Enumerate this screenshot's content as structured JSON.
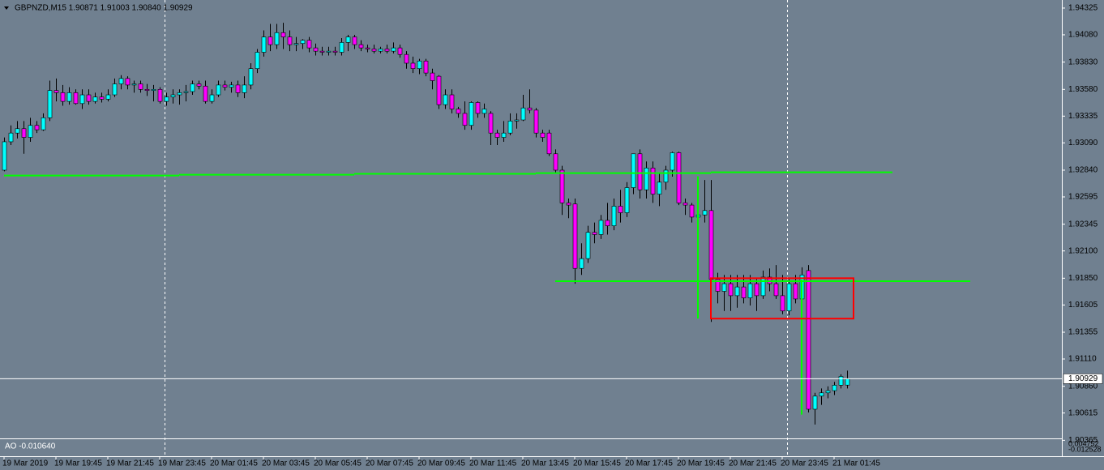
{
  "chart_data": {
    "type": "candlestick",
    "title": "GBPNZD,M15  1.90871 1.91003 1.90840 1.90929",
    "categories": [
      "19 Mar 2019",
      null,
      null,
      null,
      null,
      null,
      null,
      null,
      "19 Mar 19:45",
      null,
      null,
      null,
      null,
      null,
      null,
      null,
      "19 Mar 21:45",
      null,
      null,
      null,
      null,
      null,
      null,
      null,
      "19 Mar 23:45",
      null,
      null,
      null,
      null,
      null,
      null,
      null,
      "20 Mar 01:45",
      null,
      null,
      null,
      null,
      null,
      null,
      null,
      "20 Mar 03:45",
      null,
      null,
      null,
      null,
      null,
      null,
      null,
      "20 Mar 05:45",
      null,
      null,
      null,
      null,
      null,
      null,
      null,
      "20 Mar 07:45",
      null,
      null,
      null,
      null,
      null,
      null,
      null,
      "20 Mar 09:45",
      null,
      null,
      null,
      null,
      null,
      null,
      null,
      "20 Mar 11:45",
      null,
      null,
      null,
      null,
      null,
      null,
      null,
      "20 Mar 13:45",
      null,
      null,
      null,
      null,
      null,
      null,
      null,
      "20 Mar 15:45",
      null,
      null,
      null,
      null,
      null,
      null,
      null,
      "20 Mar 17:45",
      null,
      null,
      null,
      null,
      null,
      null,
      null,
      "20 Mar 19:45",
      null,
      null,
      null,
      null,
      null,
      null,
      null,
      "20 Mar 21:45",
      null,
      null,
      null,
      null,
      null,
      null,
      null,
      "20 Mar 23:45",
      null,
      null,
      null,
      null,
      null,
      null,
      null,
      "21 Mar 01:45",
      null,
      null
    ],
    "open": [
      1.9284,
      1.931,
      1.9318,
      1.9322,
      1.9314,
      1.9325,
      1.9321,
      1.9332,
      1.9357,
      1.9355,
      1.9347,
      1.9355,
      1.9345,
      1.9353,
      1.9347,
      1.9351,
      1.9349,
      1.9353,
      1.9363,
      1.9368,
      1.9362,
      1.9363,
      1.9358,
      1.9357,
      1.9358,
      1.9347,
      1.9351,
      1.9353,
      1.9355,
      1.9356,
      1.9363,
      1.9361,
      1.9347,
      1.9353,
      1.9362,
      1.936,
      1.9362,
      1.9355,
      1.9362,
      1.9377,
      1.9392,
      1.9406,
      1.9399,
      1.941,
      1.9406,
      1.9399,
      1.94,
      1.9403,
      1.9396,
      1.9393,
      1.9392,
      1.9393,
      1.9392,
      1.9401,
      1.9406,
      1.9399,
      1.9396,
      1.9395,
      1.9393,
      1.9395,
      1.9393,
      1.9396,
      1.939,
      1.9382,
      1.9377,
      1.9384,
      1.9373,
      1.937,
      1.9344,
      1.9353,
      1.934,
      1.9336,
      1.9325,
      1.9346,
      1.9336,
      1.9336,
      1.9318,
      1.9314,
      1.9318,
      1.9329,
      1.933,
      1.9341,
      1.9339,
      1.9318,
      1.9318,
      1.9299,
      1.9284,
      1.9254,
      1.9253,
      1.9194,
      1.9203,
      1.9227,
      1.9225,
      1.9238,
      1.9233,
      1.9251,
      1.9245,
      1.9268,
      1.9299,
      1.9266,
      1.9286,
      1.9262,
      1.9273,
      1.9284,
      1.93,
      1.9254,
      1.9252,
      1.9241,
      1.9243,
      1.9247,
      1.9184,
      1.9173,
      1.918,
      1.9169,
      1.9177,
      1.9167,
      1.918,
      1.9169,
      1.9186,
      1.918,
      1.9169,
      1.9155,
      1.918,
      1.9166,
      1.9192,
      1.9065,
      1.9077,
      1.908,
      1.9082,
      1.9087,
      1.90871
    ],
    "high": [
      1.9314,
      1.9325,
      1.9329,
      1.9329,
      1.9332,
      1.9329,
      1.9336,
      1.9366,
      1.9368,
      1.9362,
      1.936,
      1.9358,
      1.9358,
      1.9358,
      1.9355,
      1.9355,
      1.9358,
      1.9368,
      1.9371,
      1.937,
      1.9366,
      1.9366,
      1.9363,
      1.9362,
      1.936,
      1.9355,
      1.9358,
      1.9358,
      1.9362,
      1.9366,
      1.9366,
      1.9366,
      1.9358,
      1.9366,
      1.9366,
      1.9365,
      1.9366,
      1.937,
      1.9382,
      1.9395,
      1.9412,
      1.9418,
      1.9418,
      1.9419,
      1.9412,
      1.9406,
      1.9404,
      1.9406,
      1.94,
      1.9397,
      1.9397,
      1.9397,
      1.9405,
      1.9408,
      1.9408,
      1.9403,
      1.9399,
      1.9399,
      1.9397,
      1.9399,
      1.9401,
      1.9399,
      1.9393,
      1.9388,
      1.9386,
      1.9386,
      1.9377,
      1.9371,
      1.9358,
      1.9358,
      1.9342,
      1.9347,
      1.9347,
      1.9347,
      1.9345,
      1.9338,
      1.9321,
      1.9329,
      1.9336,
      1.9336,
      1.9353,
      1.9358,
      1.9341,
      1.9321,
      1.9321,
      1.9303,
      1.9288,
      1.9258,
      1.9258,
      1.9217,
      1.9233,
      1.9236,
      1.9243,
      1.9254,
      1.9258,
      1.9266,
      1.9273,
      1.9299,
      1.9303,
      1.9292,
      1.9292,
      1.9281,
      1.9288,
      1.9301,
      1.9301,
      1.9258,
      1.9254,
      1.9247,
      1.9275,
      1.9275,
      1.919,
      1.9188,
      1.9188,
      1.9188,
      1.9188,
      1.9188,
      1.9184,
      1.9192,
      1.9194,
      1.9197,
      1.9188,
      1.9184,
      1.9188,
      1.9195,
      1.9197,
      1.908,
      1.9084,
      1.9086,
      1.909,
      1.9097,
      1.91003
    ],
    "low": [
      1.9283,
      1.9307,
      1.9313,
      1.9299,
      1.931,
      1.9318,
      1.932,
      1.9329,
      1.9347,
      1.9343,
      1.9344,
      1.9344,
      1.934,
      1.9344,
      1.9345,
      1.9346,
      1.9347,
      1.9351,
      1.9358,
      1.9358,
      1.9355,
      1.9355,
      1.9352,
      1.9347,
      1.9345,
      1.9343,
      1.9345,
      1.9344,
      1.9347,
      1.9353,
      1.9358,
      1.9345,
      1.9345,
      1.9351,
      1.9357,
      1.9355,
      1.9351,
      1.935,
      1.9358,
      1.9373,
      1.9388,
      1.9393,
      1.9395,
      1.9395,
      1.9393,
      1.9393,
      1.9395,
      1.9392,
      1.9389,
      1.9389,
      1.9389,
      1.9389,
      1.9389,
      1.9393,
      1.9395,
      1.9393,
      1.9392,
      1.9391,
      1.9391,
      1.9391,
      1.9391,
      1.9387,
      1.9377,
      1.9373,
      1.9372,
      1.937,
      1.9358,
      1.934,
      1.934,
      1.9336,
      1.9332,
      1.9321,
      1.9321,
      1.9332,
      1.9332,
      1.9307,
      1.9307,
      1.931,
      1.9316,
      1.9322,
      1.9329,
      1.9336,
      1.9314,
      1.931,
      1.9297,
      1.9281,
      1.9243,
      1.924,
      1.918,
      1.9188,
      1.9199,
      1.9217,
      1.9221,
      1.9225,
      1.9229,
      1.9236,
      1.9241,
      1.9262,
      1.9258,
      1.9258,
      1.9254,
      1.9251,
      1.9266,
      1.9278,
      1.9252,
      1.9243,
      1.9236,
      1.9229,
      1.9236,
      1.9145,
      1.9162,
      1.9155,
      1.9155,
      1.9158,
      1.9162,
      1.916,
      1.9155,
      1.9166,
      1.9173,
      1.9166,
      1.9152,
      1.9151,
      1.9162,
      1.9162,
      1.9062,
      1.9051,
      1.9069,
      1.9075,
      1.9078,
      1.9084,
      1.9084
    ],
    "close": [
      1.931,
      1.9318,
      1.9322,
      1.9314,
      1.9325,
      1.9321,
      1.9332,
      1.9357,
      1.9355,
      1.9347,
      1.9355,
      1.9345,
      1.9353,
      1.9347,
      1.9351,
      1.9349,
      1.9353,
      1.9363,
      1.9368,
      1.9362,
      1.9363,
      1.9358,
      1.9357,
      1.9358,
      1.9347,
      1.9351,
      1.9353,
      1.9355,
      1.9356,
      1.9363,
      1.9361,
      1.9347,
      1.9353,
      1.9362,
      1.936,
      1.9362,
      1.9355,
      1.9362,
      1.9377,
      1.9392,
      1.9406,
      1.9399,
      1.941,
      1.9406,
      1.9399,
      1.94,
      1.9403,
      1.9396,
      1.9393,
      1.9392,
      1.9393,
      1.9392,
      1.9401,
      1.9406,
      1.9399,
      1.9396,
      1.9395,
      1.9393,
      1.9395,
      1.9393,
      1.9396,
      1.939,
      1.9382,
      1.9377,
      1.9384,
      1.9373,
      1.9366,
      1.9344,
      1.9353,
      1.934,
      1.9336,
      1.9325,
      1.9346,
      1.9336,
      1.934,
      1.9318,
      1.9314,
      1.9318,
      1.9329,
      1.933,
      1.9341,
      1.9339,
      1.9318,
      1.9314,
      1.9299,
      1.9284,
      1.9254,
      1.9252,
      1.9194,
      1.9203,
      1.9227,
      1.9225,
      1.9238,
      1.9233,
      1.9251,
      1.9245,
      1.9268,
      1.9299,
      1.9266,
      1.9286,
      1.9262,
      1.9273,
      1.9284,
      1.93,
      1.9254,
      1.9252,
      1.9241,
      1.9243,
      1.9247,
      1.9184,
      1.9173,
      1.918,
      1.9169,
      1.9177,
      1.9167,
      1.918,
      1.9169,
      1.9186,
      1.918,
      1.9169,
      1.9155,
      1.918,
      1.9166,
      1.9188,
      1.9065,
      1.9077,
      1.908,
      1.9082,
      1.9087,
      1.9095,
      1.90929
    ],
    "up_color": "#00ffff",
    "down_color": "#ff00ff",
    "ylim": [
      1.9039,
      1.94384
    ],
    "yticks": [
      {
        "value": 1.94325,
        "label": "1.94325"
      },
      {
        "value": 1.9408,
        "label": "1.94080"
      },
      {
        "value": 1.9383,
        "label": "1.93830"
      },
      {
        "value": 1.9358,
        "label": "1.93580"
      },
      {
        "value": 1.93335,
        "label": "1.93335"
      },
      {
        "value": 1.9309,
        "label": "1.93090"
      },
      {
        "value": 1.9284,
        "label": "1.92840"
      },
      {
        "value": 1.92595,
        "label": "1.92595"
      },
      {
        "value": 1.92345,
        "label": "1.92345"
      },
      {
        "value": 1.921,
        "label": "1.92100"
      },
      {
        "value": 1.9185,
        "label": "1.91850"
      },
      {
        "value": 1.91605,
        "label": "1.91605"
      },
      {
        "value": 1.91355,
        "label": "1.91355"
      },
      {
        "value": 1.9111,
        "label": "1.91110"
      },
      {
        "value": 1.9086,
        "label": "1.90860"
      },
      {
        "value": 1.90615,
        "label": "1.90615"
      },
      {
        "value": 1.90365,
        "label": "1.90365"
      }
    ],
    "last_price": {
      "value": 1.90929,
      "label": "1.90929"
    },
    "level_color": "#00ff00",
    "levels": [
      {
        "value": 1.92791,
        "from": 0,
        "to": 27
      },
      {
        "value": 1.92798,
        "from": 27,
        "to": 54
      },
      {
        "value": 1.92806,
        "from": 54,
        "to": 82
      },
      {
        "value": 1.92813,
        "from": 82,
        "to": 109
      },
      {
        "value": 1.9282,
        "from": 109,
        "to": 137
      },
      {
        "value": 1.91823,
        "from": 85,
        "to": 149
      }
    ],
    "markers": [
      {
        "at": 107,
        "top": 1.92784,
        "bottom": 1.9148
      },
      {
        "at": 123,
        "top": 1.91837,
        "bottom": 1.90601
      }
    ],
    "box": {
      "from": 109,
      "to": 131,
      "top": 1.9185,
      "bottom": 1.9148,
      "color": "#ff0000"
    },
    "indicator": {
      "label": "AO -0.010640",
      "ticks": [
        "0.004752",
        "-0.012528"
      ]
    }
  }
}
